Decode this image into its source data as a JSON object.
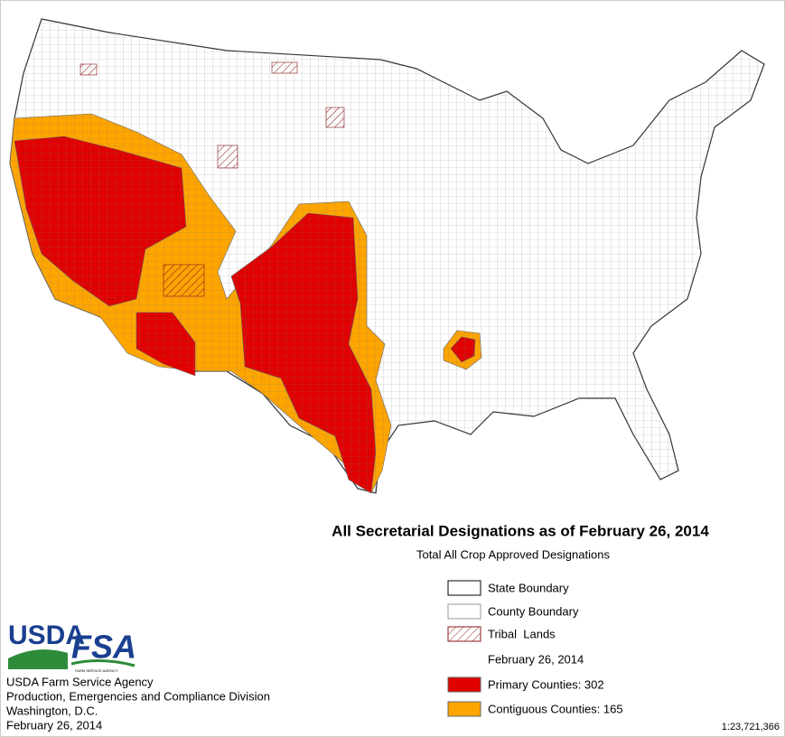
{
  "title": "All Secretarial Designations as of February 26, 2014",
  "subtitle": "Total All Crop Approved Designations",
  "legend": {
    "boundaries": [
      "State Boundary",
      "County Boundary",
      "Tribal  Lands"
    ],
    "date": "February 26, 2014",
    "designations": [
      "Primary Counties: 302",
      "Contiguous Counties: 165"
    ]
  },
  "logos": {
    "usda": "USDA",
    "fsa": "FSA",
    "fsa_tagline": "FARM SERVICE AGENCY"
  },
  "credits": [
    "USDA Farm Service Agency",
    "Production, Emergencies and Compliance Division",
    "Washington, D.C.",
    "February 26, 2014"
  ],
  "scale": "1:23,721,366"
}
